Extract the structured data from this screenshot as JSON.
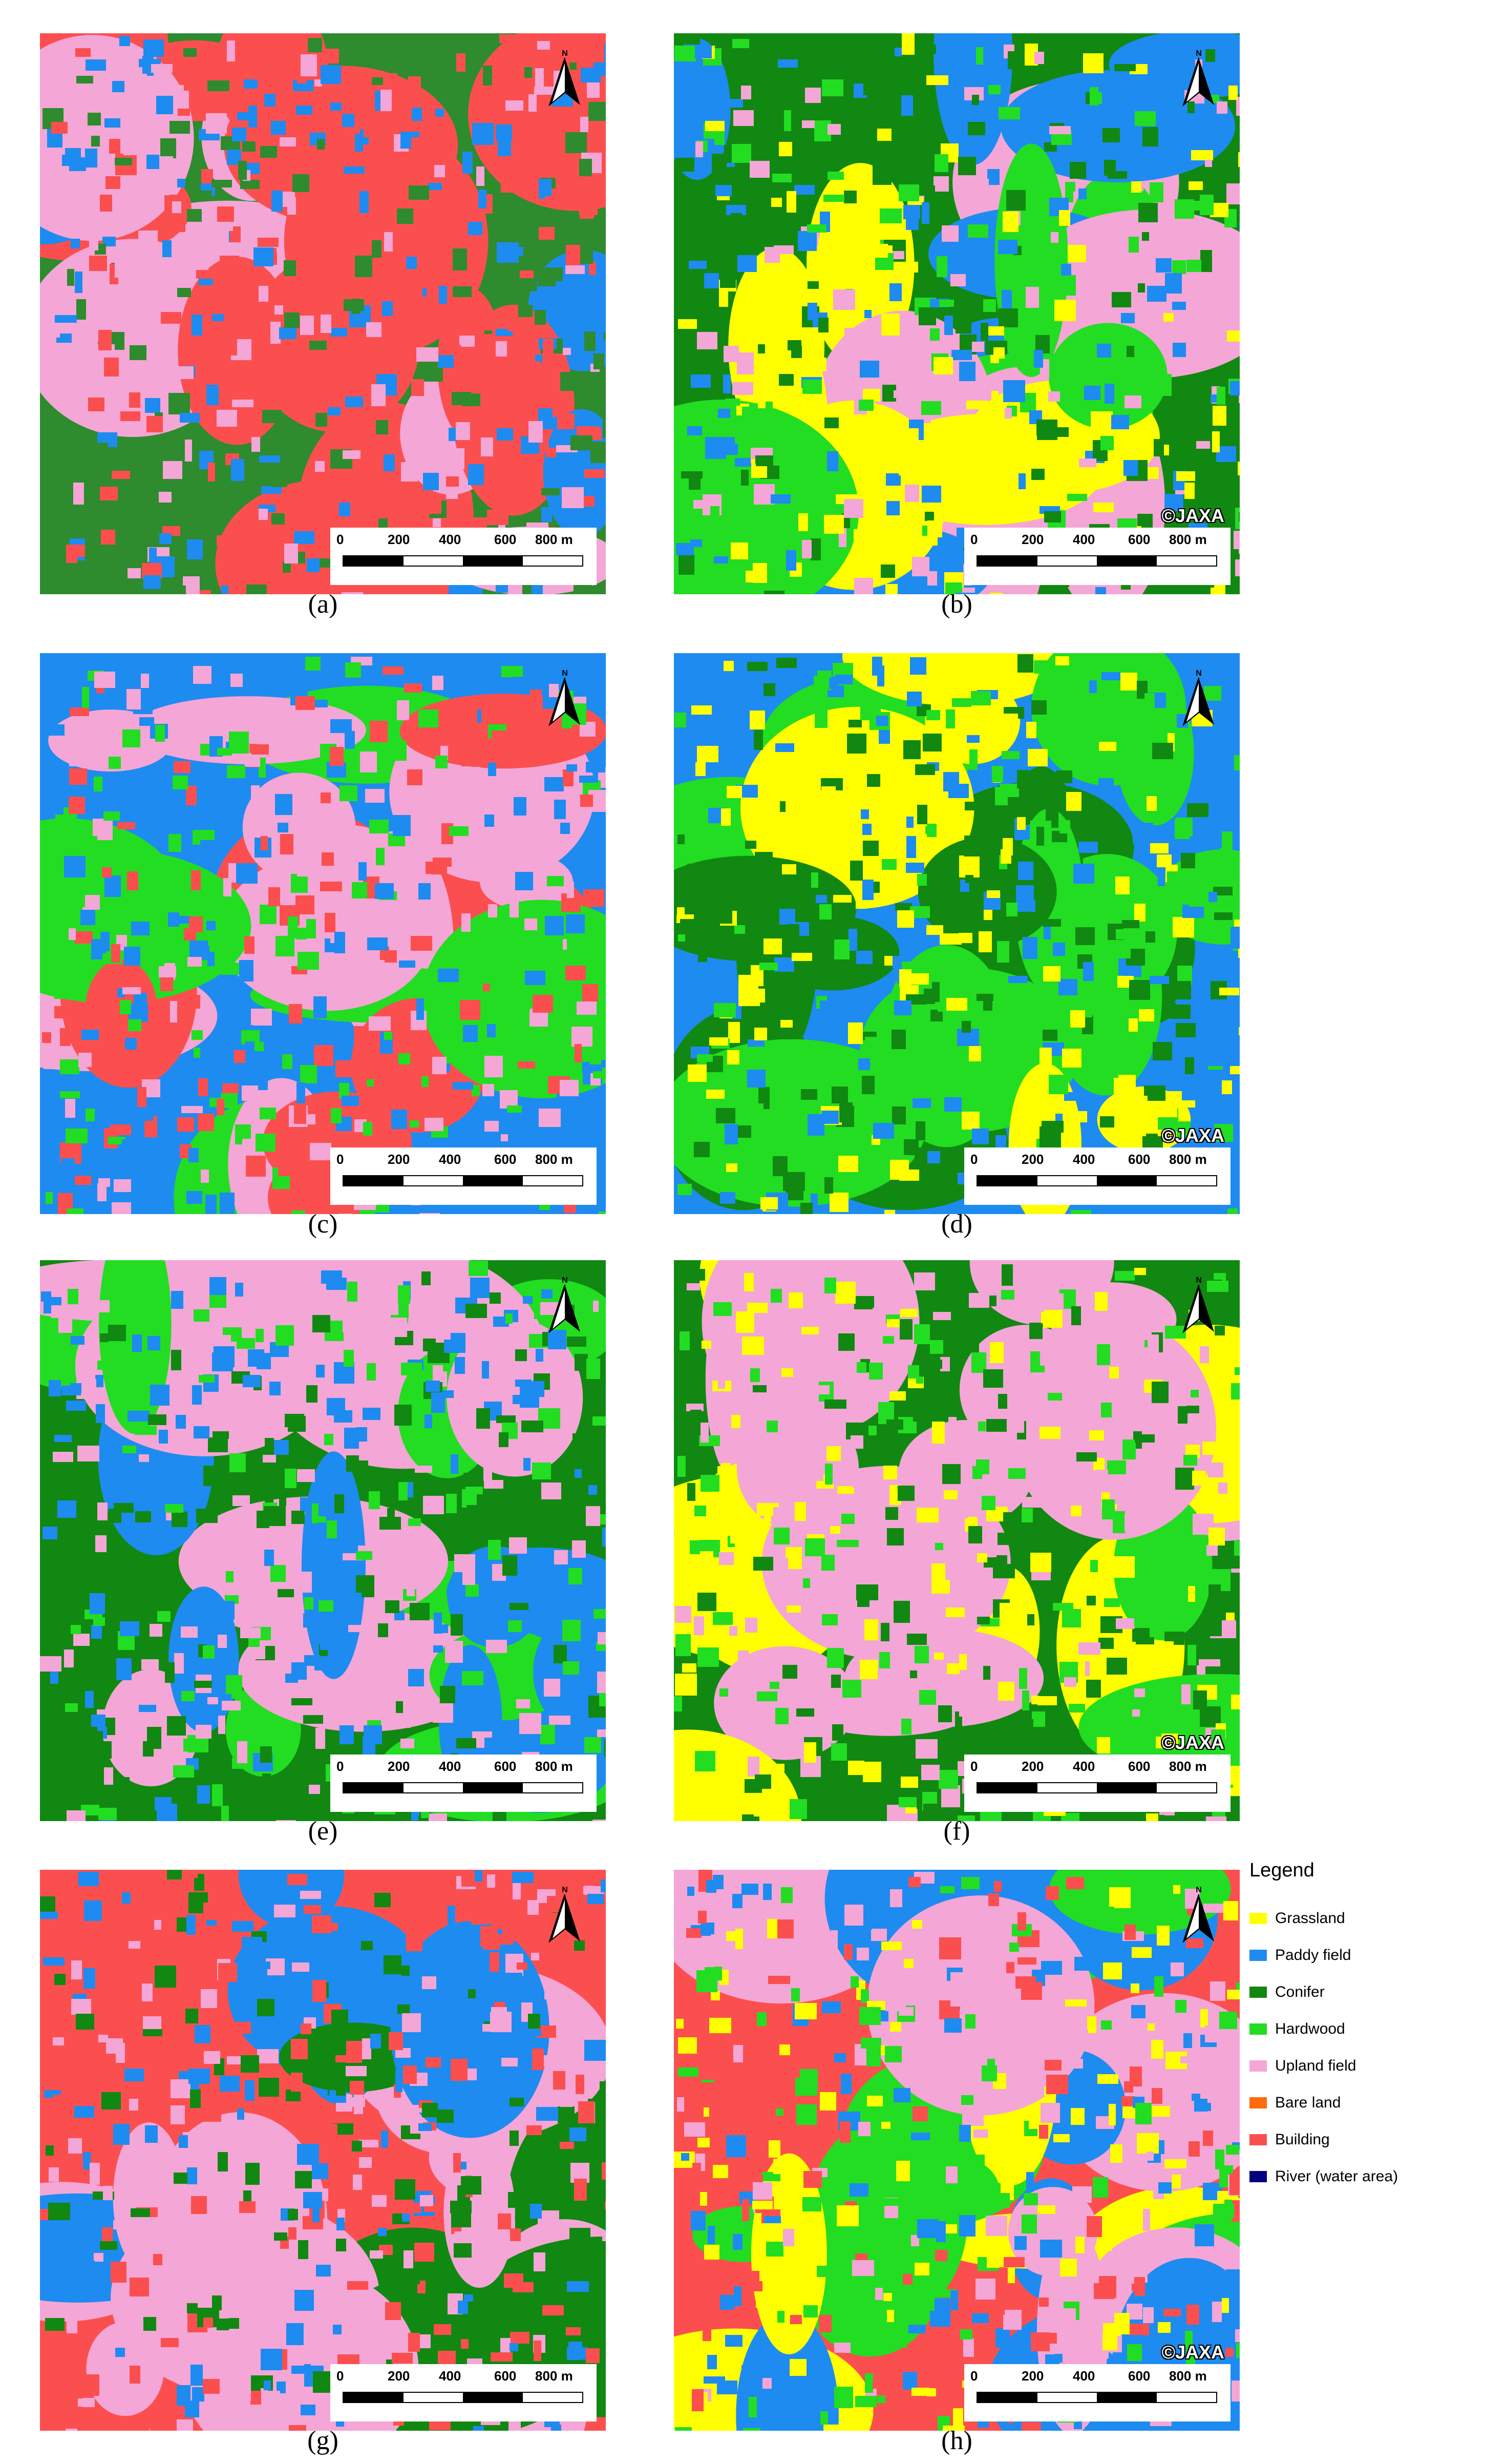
{
  "panels": [
    {
      "id": "a",
      "caption": "(a)",
      "copyright": "",
      "palette": [
        "#2e8b2e",
        "#f4a6d6",
        "#fb4f4f",
        "#1e8bf0"
      ]
    },
    {
      "id": "b",
      "caption": "(b)",
      "copyright": "©JAXA",
      "palette": [
        "#118811",
        "#ffff00",
        "#1e8bf0",
        "#f4a6d6",
        "#22dd22"
      ]
    },
    {
      "id": "c",
      "caption": "(c)",
      "copyright": "",
      "palette": [
        "#1e8bf0",
        "#f4a6d6",
        "#fb4f4f",
        "#22dd22"
      ]
    },
    {
      "id": "d",
      "caption": "(d)",
      "copyright": "©JAXA",
      "palette": [
        "#1e8bf0",
        "#ffff00",
        "#22dd22",
        "#118811"
      ]
    },
    {
      "id": "e",
      "caption": "(e)",
      "copyright": "",
      "palette": [
        "#118811",
        "#f4a6d6",
        "#1e8bf0",
        "#22dd22"
      ]
    },
    {
      "id": "f",
      "caption": "(f)",
      "copyright": "©JAXA",
      "palette": [
        "#118811",
        "#22dd22",
        "#f4a6d6",
        "#ffff00"
      ]
    },
    {
      "id": "g",
      "caption": "(g)",
      "copyright": "",
      "palette": [
        "#fb4f4f",
        "#f4a6d6",
        "#1e8bf0",
        "#118811"
      ]
    },
    {
      "id": "h",
      "caption": "(h)",
      "copyright": "©JAXA",
      "palette": [
        "#fb4f4f",
        "#ffff00",
        "#1e8bf0",
        "#f4a6d6",
        "#22dd22"
      ]
    }
  ],
  "scalebar": {
    "ticks": [
      "0",
      "200",
      "400",
      "600",
      "800 m"
    ]
  },
  "legend": {
    "title": "Legend",
    "items": [
      {
        "label": "Grassland",
        "color": "#ffff00"
      },
      {
        "label": "Paddy field",
        "color": "#1e8bf0"
      },
      {
        "label": "Conifer",
        "color": "#118811"
      },
      {
        "label": "Hardwood",
        "color": "#22dd22"
      },
      {
        "label": "Upland field",
        "color": "#f4a6d6"
      },
      {
        "label": "Bare land",
        "color": "#ff6a0a"
      },
      {
        "label": "Building",
        "color": "#fb4f4f"
      },
      {
        "label": "River (water area)",
        "color": "#000080"
      }
    ]
  },
  "north_arrow_icon": "north-arrow-icon"
}
